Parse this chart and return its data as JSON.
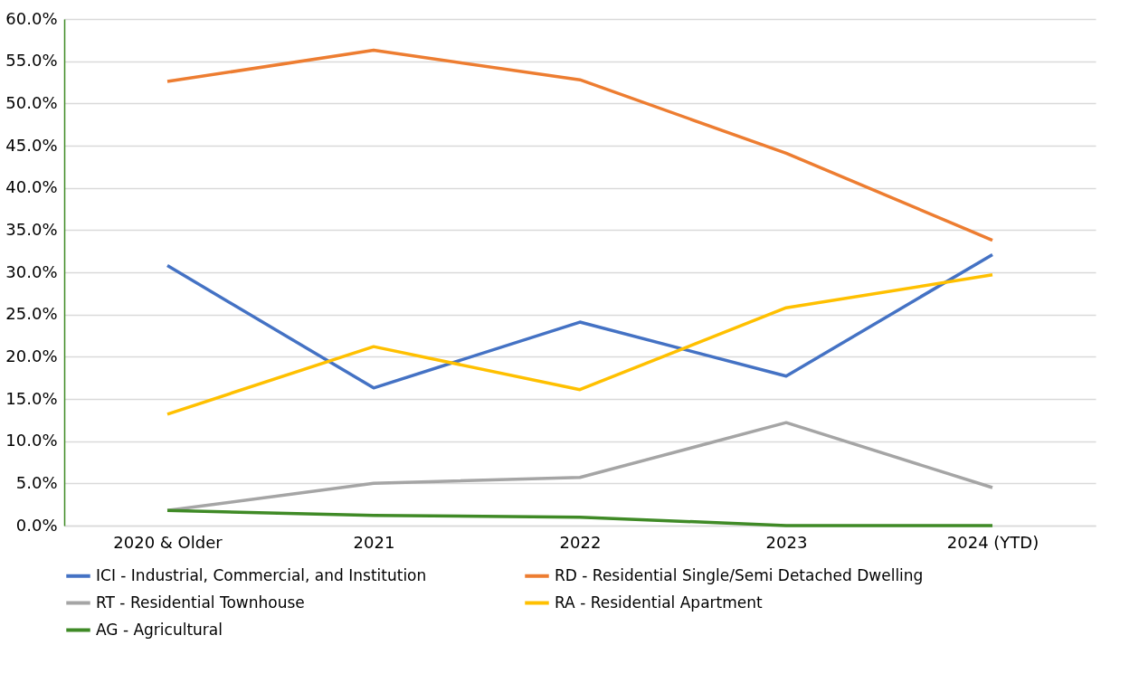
{
  "chart_data": {
    "type": "line",
    "categories": [
      "2020 & Older",
      "2021",
      "2022",
      "2023",
      "2024 (YTD)"
    ],
    "series": [
      {
        "name": "ICI - Industrial, Commercial, and Institution",
        "color": "#4472c4",
        "values": [
          30.8,
          16.3,
          24.1,
          17.7,
          32.1
        ]
      },
      {
        "name": "RD - Residential Single/Semi Detached Dwelling",
        "color": "#ed7d31",
        "values": [
          52.6,
          56.3,
          52.8,
          44.1,
          33.8
        ]
      },
      {
        "name": "RT - Residential Townhouse",
        "color": "#a5a5a5",
        "values": [
          1.8,
          5.0,
          5.7,
          12.2,
          4.5
        ]
      },
      {
        "name": "RA - Residential Apartment",
        "color": "#ffc000",
        "values": [
          13.2,
          21.2,
          16.1,
          25.8,
          29.7
        ]
      },
      {
        "name": "AG - Agricultural",
        "color": "#3f8a26",
        "values": [
          1.8,
          1.2,
          1.0,
          0,
          0
        ]
      }
    ],
    "ylim": [
      0,
      60
    ],
    "yticks": [
      {
        "value": 0,
        "label": "0.0%"
      },
      {
        "value": 5,
        "label": "5.0%"
      },
      {
        "value": 10,
        "label": "10.0%"
      },
      {
        "value": 15,
        "label": "15.0%"
      },
      {
        "value": 20,
        "label": "20.0%"
      },
      {
        "value": 25,
        "label": "25.0%"
      },
      {
        "value": 30,
        "label": "30.0%"
      },
      {
        "value": 35,
        "label": "35.0%"
      },
      {
        "value": 40,
        "label": "40.0%"
      },
      {
        "value": 45,
        "label": "45.0%"
      },
      {
        "value": 50,
        "label": "50.0%"
      },
      {
        "value": 55,
        "label": "55.0%"
      },
      {
        "value": 60,
        "label": "60.0%"
      }
    ],
    "grid": "y",
    "legend": "bottom",
    "marker": "none",
    "line_style": "solid"
  }
}
